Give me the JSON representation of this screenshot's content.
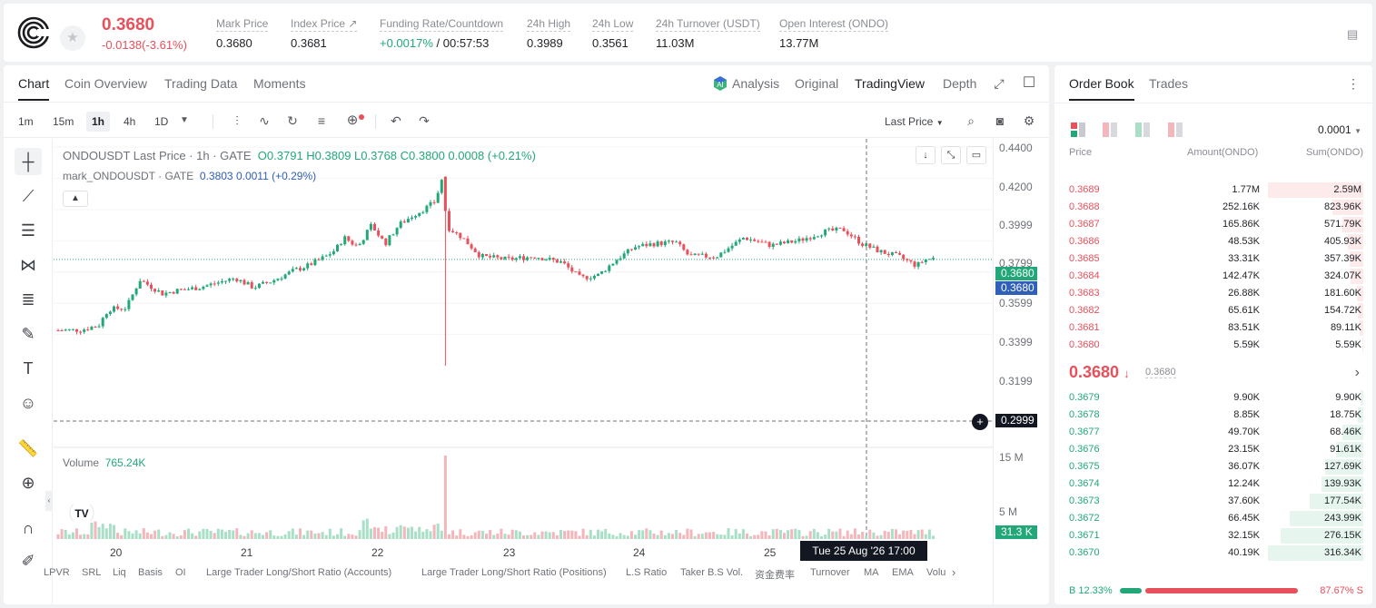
{
  "header": {
    "last_price": "0.3680",
    "change": "-0.0138(-3.61%)",
    "stats": [
      {
        "label": "Mark Price",
        "value": "0.3680"
      },
      {
        "label": "Index Price ↗",
        "value": "0.3681"
      },
      {
        "label": "Funding Rate/Countdown",
        "value_green": "+0.0017%",
        "value": " / 00:57:53"
      },
      {
        "label": "24h High",
        "value": "0.3989"
      },
      {
        "label": "24h Low",
        "value": "0.3561"
      },
      {
        "label": "24h Turnover (USDT)",
        "value": "11.03M"
      },
      {
        "label": "Open Interest (ONDO)",
        "value": "13.77M"
      }
    ]
  },
  "chart_tabs": [
    "Chart",
    "Coin Overview",
    "Trading Data",
    "Moments"
  ],
  "chart_view_tabs": [
    "Analysis",
    "Original",
    "TradingView",
    "Depth"
  ],
  "timeframes": [
    "1m",
    "15m",
    "1h",
    "4h",
    "1D"
  ],
  "active_timeframe": "1h",
  "price_type": "Last Price",
  "legend": {
    "symbol": "ONDOUSDT Last Price · 1h · GATE",
    "ohlc": "O0.3791 H0.3809 L0.3768 C0.3800 0.0008 (+0.21%)",
    "mark_symbol": "mark_ONDOUSDT · GATE",
    "mark_vals": "0.3803 0.0011 (+0.29%)"
  },
  "volume_label": "Volume",
  "volume_value": "765.24K",
  "y_ticks": [
    "0.4400",
    "0.4200",
    "0.3999",
    "0.3799",
    "0.3599",
    "0.3399",
    "0.3199"
  ],
  "y_tag_last": "0.3680",
  "y_tag_mark": "0.3680",
  "y_tag_cross": "0.2999",
  "vol_ticks": [
    "15 M",
    "5 M"
  ],
  "vol_tag": "31.3 K",
  "x_ticks": [
    "20",
    "21",
    "22",
    "23",
    "24",
    "25"
  ],
  "x_tooltip": "Tue 25 Aug '26   17:00",
  "indicators": [
    "LPVR",
    "SRL",
    "Liq",
    "Basis",
    "OI",
    "Large Trader Long/Short Ratio (Accounts)",
    "Large Trader Long/Short Ratio (Positions)",
    "L.S Ratio",
    "Taker B.S Vol.",
    "资金费率",
    "Turnover",
    "MA",
    "EMA",
    "Volu"
  ],
  "orderbook": {
    "tabs": [
      "Order Book",
      "Trades"
    ],
    "precision": "0.0001",
    "headers": [
      "Price",
      "Amount(ONDO)",
      "Sum(ONDO)"
    ],
    "asks": [
      {
        "p": "0.3689",
        "a": "1.77M",
        "s": "2.59M",
        "d": 1.0
      },
      {
        "p": "0.3688",
        "a": "252.16K",
        "s": "823.96K",
        "d": 0.32
      },
      {
        "p": "0.3687",
        "a": "165.86K",
        "s": "571.79K",
        "d": 0.22
      },
      {
        "p": "0.3686",
        "a": "48.53K",
        "s": "405.93K",
        "d": 0.16
      },
      {
        "p": "0.3685",
        "a": "33.31K",
        "s": "357.39K",
        "d": 0.14
      },
      {
        "p": "0.3684",
        "a": "142.47K",
        "s": "324.07K",
        "d": 0.13
      },
      {
        "p": "0.3683",
        "a": "26.88K",
        "s": "181.60K",
        "d": 0.07
      },
      {
        "p": "0.3682",
        "a": "65.61K",
        "s": "154.72K",
        "d": 0.06
      },
      {
        "p": "0.3681",
        "a": "83.51K",
        "s": "89.11K",
        "d": 0.035
      },
      {
        "p": "0.3680",
        "a": "5.59K",
        "s": "5.59K",
        "d": 0.005
      }
    ],
    "mid_price": "0.3680",
    "mid_mark": "0.3680",
    "bids": [
      {
        "p": "0.3679",
        "a": "9.90K",
        "s": "9.90K",
        "d": 0.03
      },
      {
        "p": "0.3678",
        "a": "8.85K",
        "s": "18.75K",
        "d": 0.06
      },
      {
        "p": "0.3677",
        "a": "49.70K",
        "s": "68.46K",
        "d": 0.22
      },
      {
        "p": "0.3676",
        "a": "23.15K",
        "s": "91.61K",
        "d": 0.29
      },
      {
        "p": "0.3675",
        "a": "36.07K",
        "s": "127.69K",
        "d": 0.4
      },
      {
        "p": "0.3674",
        "a": "12.24K",
        "s": "139.93K",
        "d": 0.44
      },
      {
        "p": "0.3673",
        "a": "37.60K",
        "s": "177.54K",
        "d": 0.56
      },
      {
        "p": "0.3672",
        "a": "66.45K",
        "s": "243.99K",
        "d": 0.77
      },
      {
        "p": "0.3671",
        "a": "32.15K",
        "s": "276.15K",
        "d": 0.87
      },
      {
        "p": "0.3670",
        "a": "40.19K",
        "s": "316.34K",
        "d": 1.0
      }
    ],
    "buy_ratio": "B 12.33%",
    "sell_ratio": "87.67% S",
    "buy_fraction": 0.1233
  },
  "colors": {
    "up": "#22a878",
    "down": "#e8505b",
    "accent": "#2f5fb8"
  }
}
